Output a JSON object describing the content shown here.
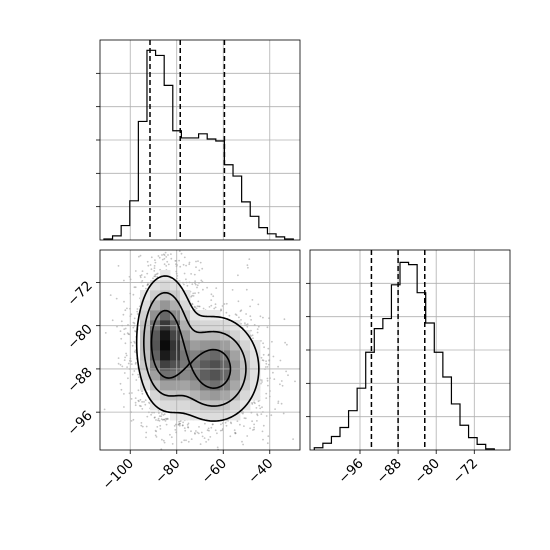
{
  "chart_data": {
    "type": "corner",
    "grid": true,
    "panels": [
      {
        "id": "hist_x",
        "type": "histogram",
        "variable": "x",
        "xlim": [
          -113,
          -27
        ],
        "bins": {
          "edges": [
            -111.3,
            -107.6,
            -103.9,
            -100.2,
            -96.5,
            -92.8,
            -89.1,
            -85.4,
            -81.7,
            -78.0,
            -74.3,
            -70.6,
            -66.9,
            -63.2,
            -59.5,
            -55.8,
            -52.1,
            -48.4,
            -44.7,
            -41.0,
            -37.3,
            -33.6,
            -29.9
          ],
          "counts": [
            1,
            4,
            14,
            38,
            115,
            184,
            179,
            150,
            106,
            99,
            99,
            103,
            98,
            96,
            73,
            62,
            37,
            23,
            12,
            6,
            3,
            1
          ]
        },
        "ymax": 194,
        "quantiles": [
          -91.5,
          -78.5,
          -59.5
        ]
      },
      {
        "id": "hist_y",
        "type": "histogram",
        "variable": "y",
        "xlim": [
          -106.5,
          -64.5
        ],
        "bins": {
          "edges": [
            -105.6,
            -103.8,
            -102.0,
            -100.2,
            -98.4,
            -96.6,
            -94.8,
            -93.0,
            -91.2,
            -89.4,
            -87.6,
            -85.8,
            -84.0,
            -82.2,
            -80.4,
            -78.6,
            -76.8,
            -75.0,
            -73.2,
            -71.4,
            -69.6,
            -67.8
          ],
          "counts": [
            2,
            6,
            12,
            20,
            35,
            55,
            87,
            108,
            117,
            147,
            167,
            165,
            140,
            113,
            87,
            65,
            41,
            22,
            11,
            5,
            1
          ]
        },
        "ymax": 178,
        "quantiles": [
          -93.6,
          -88.0,
          -82.4
        ]
      },
      {
        "id": "joint",
        "type": "hist2d_contour",
        "xlim": [
          -113,
          -27
        ],
        "ylim": [
          -103,
          -66
        ],
        "xticks": [
          -100,
          -80,
          -60,
          -40
        ],
        "yticks": [
          -72,
          -80,
          -88,
          -96
        ],
        "xtick_labels": [
          "−100",
          "−80",
          "−60",
          "−40"
        ],
        "ytick_labels": [
          "−72",
          "−80",
          "−88",
          "−96"
        ],
        "modes": [
          {
            "center": [
              -85,
              -83
            ],
            "spread": [
              6,
              6
            ],
            "angle_deg": -52,
            "weight": 0.55
          },
          {
            "center": [
              -64,
              -88
            ],
            "spread": [
              10,
              5
            ],
            "angle_deg": 0,
            "weight": 0.45
          }
        ],
        "contour_levels": [
          0.12,
          0.3,
          0.6
        ]
      }
    ],
    "y_hist_xticks": [
      -96,
      -88,
      -80,
      -72
    ],
    "y_hist_xtick_labels": [
      "−96",
      "−88",
      "−80",
      "−72"
    ]
  }
}
